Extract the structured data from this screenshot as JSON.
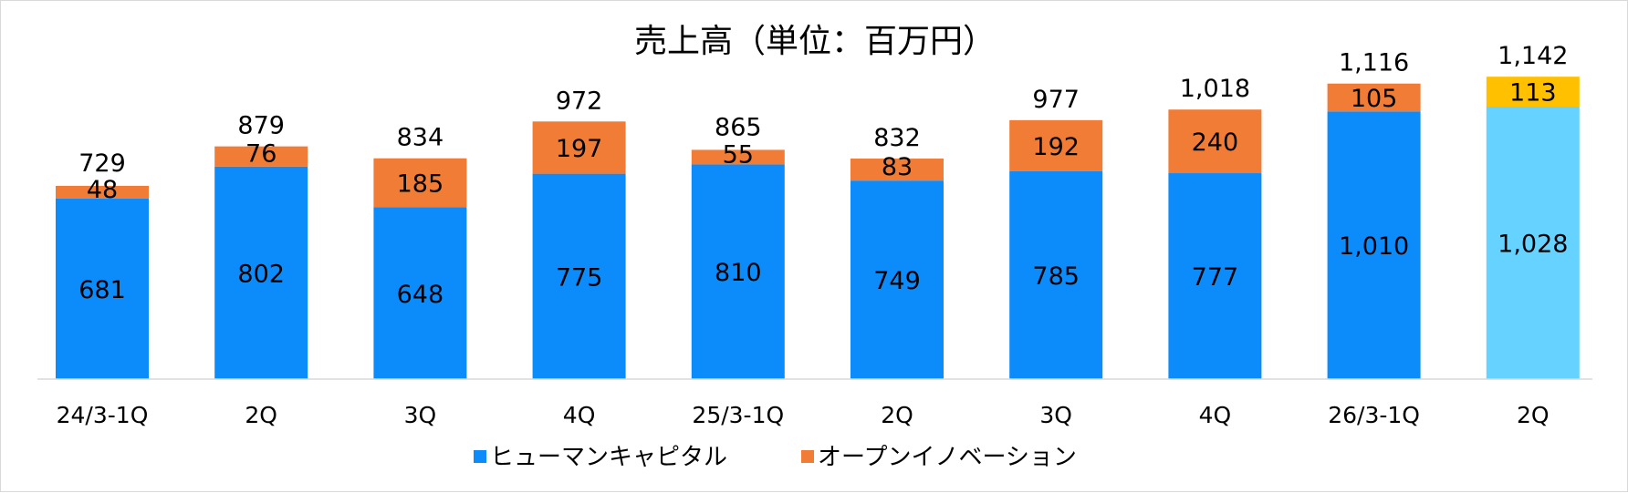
{
  "chart_data": {
    "type": "bar",
    "stacked": true,
    "title": "売上高（単位：百万円）",
    "categories": [
      "24/3-1Q",
      "2Q",
      "3Q",
      "4Q",
      "25/3-1Q",
      "2Q",
      "3Q",
      "4Q",
      "26/3-1Q",
      "2Q"
    ],
    "series": [
      {
        "name": "ヒューマンキャピタル",
        "color": "#0c8cfa",
        "values": [
          681,
          802,
          648,
          775,
          810,
          749,
          785,
          777,
          1010,
          1028
        ],
        "labels": [
          "681",
          "802",
          "648",
          "775",
          "810",
          "749",
          "785",
          "777",
          "1,010",
          "1,028"
        ],
        "highlight_last_color": "#66d2ff"
      },
      {
        "name": "オープンイノベーション",
        "color": "#f07c35",
        "values": [
          48,
          76,
          185,
          197,
          55,
          83,
          192,
          240,
          105,
          113
        ],
        "labels": [
          "48",
          "76",
          "185",
          "197",
          "55",
          "83",
          "192",
          "240",
          "105",
          "113"
        ],
        "highlight_last_color": "#ffc000"
      }
    ],
    "totals": [
      729,
      879,
      834,
      972,
      865,
      832,
      977,
      1018,
      1116,
      1142
    ],
    "total_labels": [
      "729",
      "879",
      "834",
      "972",
      "865",
      "832",
      "977",
      "1,018",
      "1,116",
      "1,142"
    ],
    "ylim": [
      0,
      1200
    ],
    "grid": false,
    "legend": "bottom"
  }
}
